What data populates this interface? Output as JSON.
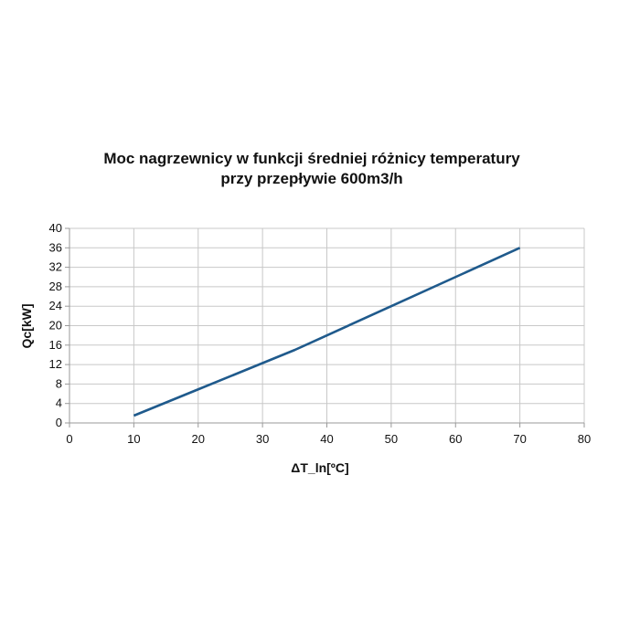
{
  "chart_data": {
    "type": "line",
    "title": [
      "Moc nagrzewnicy  w funkcji średniej różnicy temperatury",
      "przy przepływie 600m3/h"
    ],
    "x_label": "ΔT_ln[ºC]",
    "y_label": "Qc[kW]",
    "x": [
      10,
      20,
      30,
      35,
      40,
      50,
      60,
      70
    ],
    "series": [
      {
        "color": "#1f5a8c",
        "values": [
          1.5,
          6.9,
          12.3,
          15,
          18,
          24,
          30,
          36
        ]
      }
    ],
    "xlim": [
      0,
      80
    ],
    "xticks": [
      0,
      10,
      20,
      30,
      40,
      50,
      60,
      70,
      80
    ],
    "ylim": [
      0,
      40
    ],
    "yticks": [
      0,
      4,
      8,
      12,
      16,
      20,
      24,
      28,
      32,
      36,
      40
    ],
    "grid": true
  }
}
